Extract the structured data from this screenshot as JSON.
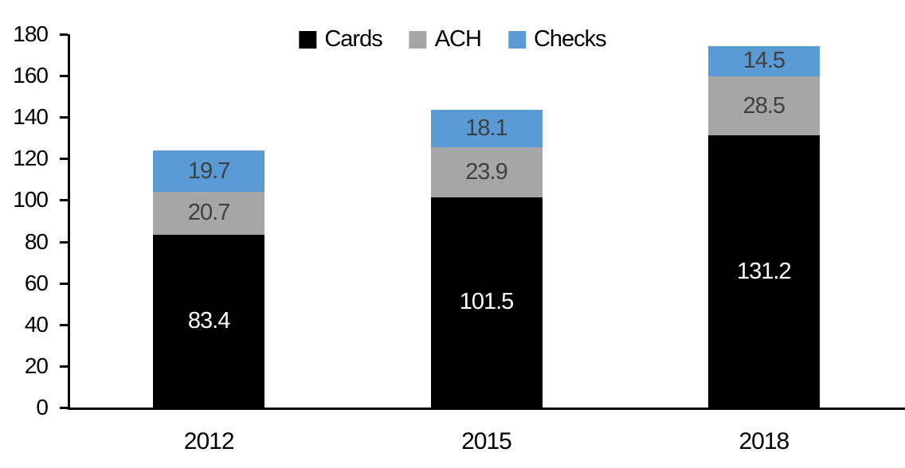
{
  "chart_data": {
    "type": "bar",
    "stacked": true,
    "title": "",
    "categories": [
      "2012",
      "2015",
      "2018"
    ],
    "series": [
      {
        "name": "Cards",
        "color": "#000000",
        "label_color": "#ffffff",
        "values": [
          83.4,
          101.5,
          131.2
        ]
      },
      {
        "name": "ACH",
        "color": "#a6a6a6",
        "label_color": "#404040",
        "values": [
          20.7,
          23.9,
          28.5
        ]
      },
      {
        "name": "Checks",
        "color": "#5b9bd5",
        "label_color": "#404040",
        "values": [
          19.7,
          18.1,
          14.5
        ]
      }
    ],
    "totals": [
      123.8,
      143.5,
      174.2
    ],
    "ylim": [
      0,
      180
    ],
    "ytick_step": 20,
    "ytick_labels": [
      "0",
      "20",
      "40",
      "60",
      "80",
      "100",
      "120",
      "140",
      "160",
      "180"
    ],
    "xlabel": "",
    "ylabel": "",
    "grid": false,
    "legend_position": "top-center",
    "axis_color": "#000000",
    "value_decimals": 1
  }
}
